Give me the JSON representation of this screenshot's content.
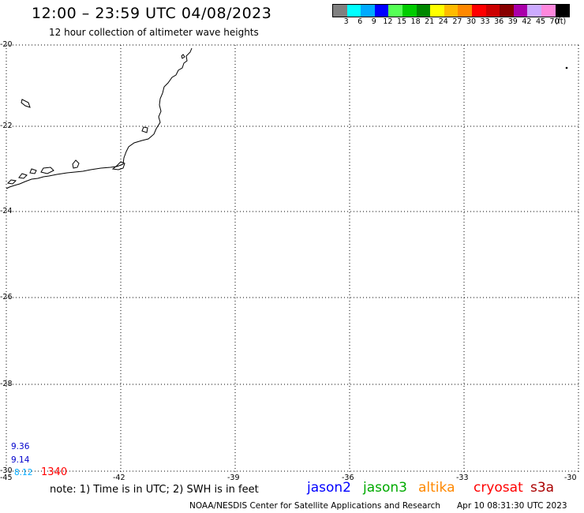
{
  "header": {
    "title": "12:00 – 23:59 UTC 04/08/2023",
    "subtitle": "12 hour collection of altimeter wave heights"
  },
  "legend": {
    "colors": [
      "#808080",
      "#00ffff",
      "#00aaff",
      "#0000ff",
      "#55ff55",
      "#00cc00",
      "#008800",
      "#ffff00",
      "#ffbb00",
      "#ff8800",
      "#ff0000",
      "#cc0000",
      "#880000",
      "#aa00aa",
      "#ccaaff",
      "#ff88dd",
      "#000000"
    ],
    "labels": [
      "3",
      "6",
      "9",
      "12",
      "15",
      "18",
      "21",
      "24",
      "27",
      "30",
      "33",
      "36",
      "39",
      "42",
      "45",
      "70",
      "(ft)"
    ]
  },
  "map": {
    "lat_labels": [
      "-20",
      "-22",
      "-24",
      "-26",
      "-28",
      "-30"
    ],
    "lon_labels": [
      "-45",
      "-42",
      "-39",
      "-36",
      "-33",
      "-30"
    ]
  },
  "observations": [
    {
      "value": "9.36",
      "color": "#0000cc"
    },
    {
      "value": "9.14",
      "color": "#0000cc"
    },
    {
      "value": "8.12",
      "color": "#00aaff"
    },
    {
      "value": "1340",
      "color": "#ff0000"
    }
  ],
  "footer": {
    "note": "note: 1) Time is in UTC; 2) SWH is in feet",
    "satellites": [
      {
        "name": "jason2",
        "color": "#0000ff"
      },
      {
        "name": "jason3",
        "color": "#00aa00"
      },
      {
        "name": "altika",
        "color": "#ff8800"
      },
      {
        "name": "cryosat",
        "color": "#ff0000"
      },
      {
        "name": "s3a",
        "color": "#aa0000"
      }
    ],
    "credit": "NOAA/NESDIS Center for Satellite Applications and Research",
    "timestamp": "Apr 10 08:31:30 UTC 2023"
  }
}
